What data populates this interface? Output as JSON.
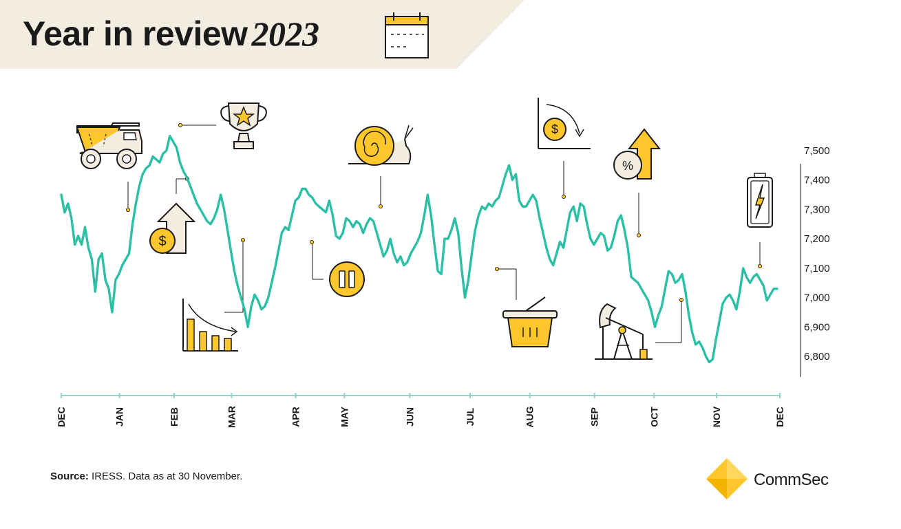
{
  "header": {
    "title": "Year in review",
    "year": "2023",
    "icon": "calendar-icon"
  },
  "source": {
    "label": "Source:",
    "text": "IRESS. Data as at 30 November."
  },
  "brand": {
    "name": "CommSec",
    "logo": "commsec-diamond-logo"
  },
  "colors": {
    "line": "#2bbfa5",
    "accent": "#ffc72c",
    "banner": "#f3ede1",
    "ink": "#1a1a1a",
    "axis": "#8fd6c8"
  },
  "chart_data": {
    "type": "line",
    "title": "",
    "xlabel": "",
    "ylabel": "",
    "ylim": [
      6700,
      7560
    ],
    "yticks": [
      6800,
      6900,
      7000,
      7100,
      7200,
      7300,
      7400,
      7500
    ],
    "ytick_labels": [
      "6,800",
      "6,900",
      "7,000",
      "7,100",
      "7,200",
      "7,300",
      "7,400",
      "7,500"
    ],
    "x_ticks": [
      {
        "label": "DEC",
        "t": 0
      },
      {
        "label": "JAN",
        "t": 0.081
      },
      {
        "label": "FEB",
        "t": 0.157
      },
      {
        "label": "MAR",
        "t": 0.237
      },
      {
        "label": "APR",
        "t": 0.326
      },
      {
        "label": "MAY",
        "t": 0.394
      },
      {
        "label": "JUN",
        "t": 0.485
      },
      {
        "label": "JUL",
        "t": 0.569
      },
      {
        "label": "AUG",
        "t": 0.652
      },
      {
        "label": "SEP",
        "t": 0.742
      },
      {
        "label": "OCT",
        "t": 0.825
      },
      {
        "label": "NOV",
        "t": 0.912
      },
      {
        "label": "DEC",
        "t": 1.0
      }
    ],
    "series": [
      {
        "values": [
          7350,
          7290,
          7320,
          7270,
          7180,
          7210,
          7180,
          7240,
          7170,
          7130,
          7020,
          7130,
          7150,
          7060,
          7030,
          6950,
          7060,
          7080,
          7110,
          7130,
          7150,
          7250,
          7320,
          7380,
          7420,
          7440,
          7450,
          7480,
          7470,
          7460,
          7490,
          7500,
          7550,
          7530,
          7510,
          7460,
          7430,
          7410,
          7380,
          7350,
          7320,
          7300,
          7280,
          7260,
          7250,
          7270,
          7300,
          7350,
          7300,
          7230,
          7160,
          7090,
          7040,
          7000,
          6960,
          6900,
          6970,
          7010,
          6990,
          6960,
          6970,
          7000,
          7050,
          7100,
          7160,
          7220,
          7240,
          7230,
          7280,
          7330,
          7340,
          7370,
          7370,
          7350,
          7340,
          7320,
          7310,
          7300,
          7290,
          7330,
          7280,
          7210,
          7200,
          7220,
          7270,
          7260,
          7240,
          7260,
          7250,
          7220,
          7250,
          7270,
          7260,
          7220,
          7180,
          7140,
          7160,
          7200,
          7150,
          7120,
          7140,
          7110,
          7120,
          7150,
          7170,
          7190,
          7220,
          7280,
          7350,
          7280,
          7180,
          7090,
          7080,
          7200,
          7200,
          7230,
          7270,
          7220,
          7100,
          7000,
          7060,
          7150,
          7230,
          7280,
          7310,
          7300,
          7320,
          7310,
          7330,
          7340,
          7380,
          7420,
          7450,
          7400,
          7420,
          7330,
          7310,
          7310,
          7330,
          7350,
          7330,
          7270,
          7220,
          7170,
          7130,
          7110,
          7150,
          7190,
          7170,
          7230,
          7290,
          7310,
          7260,
          7320,
          7310,
          7250,
          7200,
          7180,
          7200,
          7220,
          7210,
          7160,
          7170,
          7210,
          7260,
          7280,
          7230,
          7170,
          7070,
          7060,
          7050,
          7030,
          7010,
          6990,
          6950,
          6900,
          6940,
          6970,
          7030,
          7090,
          7080,
          7050,
          7060,
          7080,
          7020,
          6940,
          6880,
          6840,
          6850,
          6830,
          6800,
          6780,
          6790,
          6860,
          6920,
          6980,
          7000,
          7010,
          6990,
          6960,
          7020,
          7100,
          7070,
          7050,
          7070,
          7080,
          7060,
          7040,
          6990,
          7010,
          7030,
          7030
        ]
      }
    ],
    "grid": false,
    "legend": "none"
  },
  "icons": [
    "dump-truck-icon",
    "trophy-icon",
    "dollar-up-arrow-icon",
    "falling-bars-icon",
    "snail-icon",
    "pause-button-icon",
    "dollar-down-trend-icon",
    "shopping-basket-icon",
    "percent-up-arrow-icon",
    "oil-pump-icon",
    "battery-lightning-icon"
  ]
}
